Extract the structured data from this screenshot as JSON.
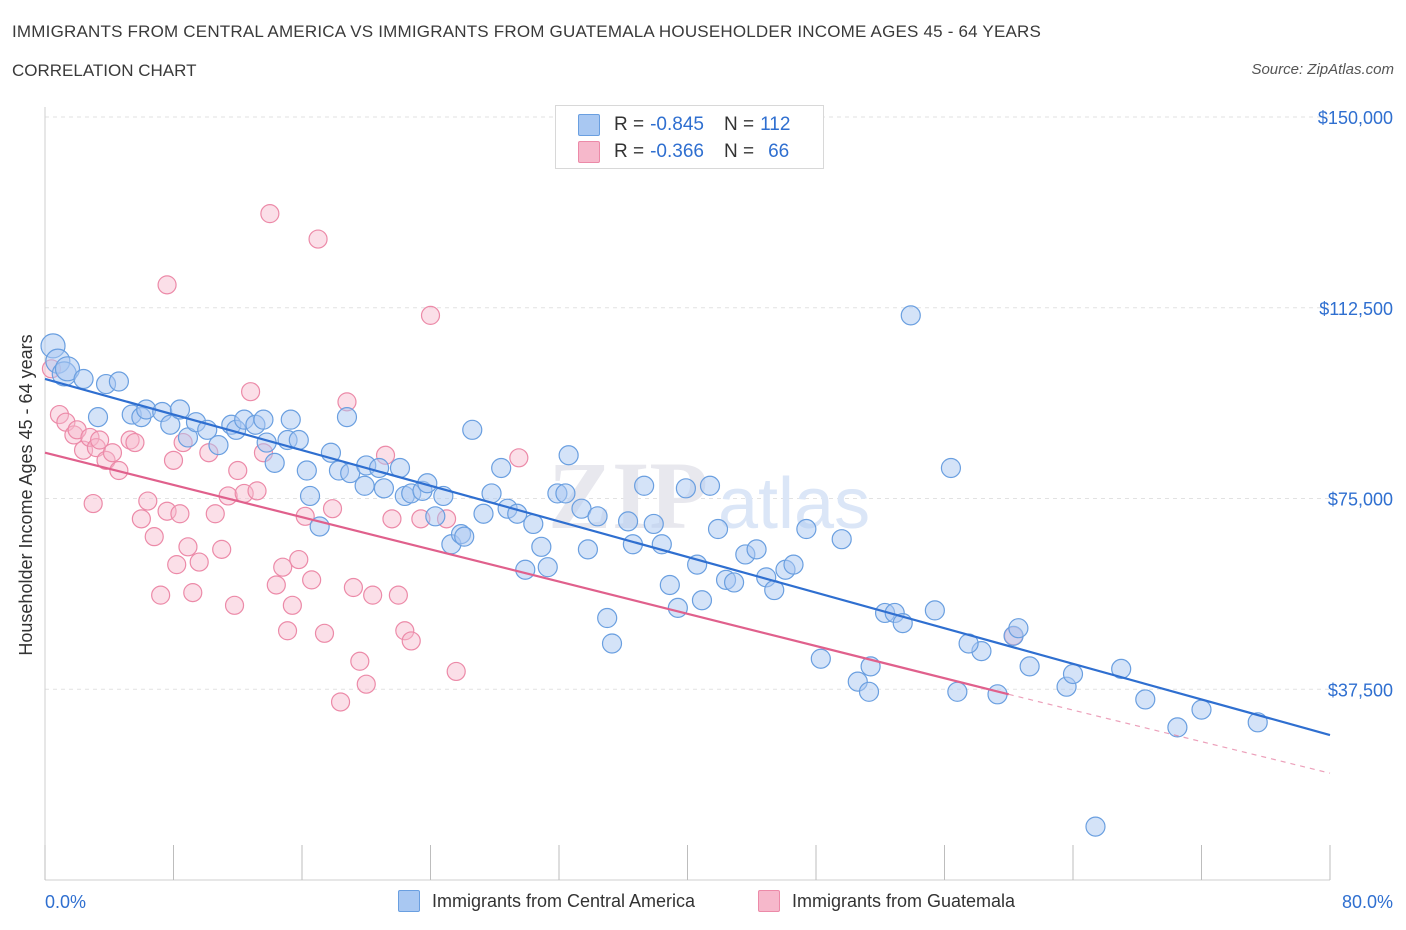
{
  "header": {
    "title": "IMMIGRANTS FROM CENTRAL AMERICA VS IMMIGRANTS FROM GUATEMALA HOUSEHOLDER INCOME AGES 45 - 64 YEARS",
    "subtitle": "CORRELATION CHART",
    "source": "Source: ZipAtlas.com"
  },
  "stats": {
    "r_label": "R =",
    "n_label": "N =",
    "central_america": {
      "r": "-0.845",
      "n": "112"
    },
    "guatemala": {
      "r": "-0.366",
      "n": "66"
    }
  },
  "watermark": {
    "zip": "ZIP",
    "atlas": "atlas"
  },
  "colors": {
    "blue_fill": "#a9c8f2",
    "blue_stroke": "#6a9fe0",
    "blue_line": "#2f6fd0",
    "pink_fill": "#f6b8cb",
    "pink_stroke": "#ec8aa8",
    "pink_line": "#e0608c",
    "axis_text": "#2f6fd0",
    "grid": "#e2e2e2"
  },
  "chart_data": {
    "type": "scatter",
    "title": "IMMIGRANTS FROM CENTRAL AMERICA VS IMMIGRANTS FROM GUATEMALA HOUSEHOLDER INCOME AGES 45 - 64 YEARS",
    "xlabel": "",
    "ylabel": "Householder Income Ages 45 - 64 years",
    "xlim": [
      0,
      80
    ],
    "ylim": [
      0,
      150000
    ],
    "x_tick_labels": [
      "0.0%",
      "80.0%"
    ],
    "y_ticks": [
      37500,
      75000,
      112500,
      150000
    ],
    "y_tick_labels": [
      "$37,500",
      "$75,000",
      "$112,500",
      "$150,000"
    ],
    "grid": true,
    "legend_position": "bottom",
    "series": [
      {
        "name": "Immigrants from Central America",
        "color": "blue",
        "trend": {
          "x": [
            0,
            80
          ],
          "y": [
            98500,
            28500
          ]
        },
        "points": [
          [
            0.5,
            105000
          ],
          [
            0.8,
            102000
          ],
          [
            1.2,
            99500
          ],
          [
            1.4,
            100500
          ],
          [
            2.4,
            98500
          ],
          [
            3.8,
            97500
          ],
          [
            4.6,
            98000
          ],
          [
            3.3,
            91000
          ],
          [
            5.4,
            91500
          ],
          [
            6.0,
            91000
          ],
          [
            6.3,
            92500
          ],
          [
            7.3,
            92000
          ],
          [
            7.8,
            89500
          ],
          [
            8.4,
            92500
          ],
          [
            8.9,
            87000
          ],
          [
            9.4,
            90000
          ],
          [
            10.1,
            88500
          ],
          [
            10.8,
            85500
          ],
          [
            11.6,
            89500
          ],
          [
            11.9,
            88500
          ],
          [
            12.4,
            90500
          ],
          [
            13.1,
            89500
          ],
          [
            13.6,
            90500
          ],
          [
            13.8,
            86000
          ],
          [
            14.3,
            82000
          ],
          [
            15.1,
            86500
          ],
          [
            15.3,
            90500
          ],
          [
            15.8,
            86500
          ],
          [
            16.3,
            80500
          ],
          [
            16.5,
            75500
          ],
          [
            17.1,
            69500
          ],
          [
            17.8,
            84000
          ],
          [
            18.3,
            80500
          ],
          [
            18.8,
            91000
          ],
          [
            19.0,
            80000
          ],
          [
            19.9,
            77500
          ],
          [
            20.0,
            81500
          ],
          [
            20.8,
            81000
          ],
          [
            21.1,
            77000
          ],
          [
            22.1,
            81000
          ],
          [
            22.4,
            75500
          ],
          [
            22.8,
            76000
          ],
          [
            23.5,
            76500
          ],
          [
            23.8,
            78000
          ],
          [
            24.3,
            71500
          ],
          [
            24.8,
            75500
          ],
          [
            25.3,
            66000
          ],
          [
            25.9,
            68000
          ],
          [
            26.1,
            67500
          ],
          [
            26.6,
            88500
          ],
          [
            27.3,
            72000
          ],
          [
            27.8,
            76000
          ],
          [
            28.4,
            81000
          ],
          [
            28.8,
            73000
          ],
          [
            29.4,
            72000
          ],
          [
            29.9,
            61000
          ],
          [
            30.4,
            70000
          ],
          [
            30.9,
            65500
          ],
          [
            31.3,
            61500
          ],
          [
            31.9,
            76000
          ],
          [
            32.4,
            76000
          ],
          [
            32.6,
            83500
          ],
          [
            33.4,
            73000
          ],
          [
            33.8,
            65000
          ],
          [
            34.4,
            71500
          ],
          [
            35.0,
            51500
          ],
          [
            35.3,
            46500
          ],
          [
            36.3,
            70500
          ],
          [
            36.6,
            66000
          ],
          [
            37.3,
            77500
          ],
          [
            37.9,
            70000
          ],
          [
            38.4,
            66000
          ],
          [
            38.9,
            58000
          ],
          [
            39.4,
            53500
          ],
          [
            39.9,
            77000
          ],
          [
            40.6,
            62000
          ],
          [
            40.9,
            55000
          ],
          [
            41.4,
            77500
          ],
          [
            41.9,
            69000
          ],
          [
            42.4,
            59000
          ],
          [
            42.9,
            58500
          ],
          [
            43.6,
            64000
          ],
          [
            44.3,
            65000
          ],
          [
            44.9,
            59500
          ],
          [
            45.4,
            57000
          ],
          [
            46.1,
            61000
          ],
          [
            46.6,
            62000
          ],
          [
            47.4,
            69000
          ],
          [
            48.3,
            43500
          ],
          [
            49.6,
            67000
          ],
          [
            50.6,
            39000
          ],
          [
            51.3,
            37000
          ],
          [
            51.4,
            42000
          ],
          [
            52.3,
            52500
          ],
          [
            52.9,
            52500
          ],
          [
            53.4,
            50500
          ],
          [
            53.9,
            111000
          ],
          [
            55.4,
            53000
          ],
          [
            56.4,
            81000
          ],
          [
            56.8,
            37000
          ],
          [
            58.3,
            45000
          ],
          [
            59.3,
            36500
          ],
          [
            60.3,
            48000
          ],
          [
            60.6,
            49500
          ],
          [
            61.3,
            42000
          ],
          [
            63.6,
            38000
          ],
          [
            65.4,
            10500
          ],
          [
            72.0,
            33500
          ],
          [
            70.5,
            30000
          ],
          [
            67.0,
            41500
          ],
          [
            64.0,
            40500
          ],
          [
            57.5,
            46500
          ],
          [
            68.5,
            35500
          ],
          [
            75.5,
            31000
          ]
        ]
      },
      {
        "name": "Immigrants from Guatemala",
        "color": "pink",
        "trend": {
          "x": [
            0,
            60
          ],
          "y": [
            84000,
            36500
          ]
        },
        "trend_dashed": {
          "x": [
            60,
            80
          ],
          "y": [
            36500,
            21000
          ]
        },
        "points": [
          [
            0.4,
            100500
          ],
          [
            0.9,
            91500
          ],
          [
            1.3,
            90000
          ],
          [
            1.8,
            87500
          ],
          [
            2.0,
            88500
          ],
          [
            2.4,
            84500
          ],
          [
            2.8,
            87000
          ],
          [
            3.2,
            85000
          ],
          [
            3.4,
            86500
          ],
          [
            3.8,
            82500
          ],
          [
            4.2,
            84000
          ],
          [
            4.6,
            80500
          ],
          [
            5.3,
            86500
          ],
          [
            5.6,
            86000
          ],
          [
            6.0,
            71000
          ],
          [
            6.4,
            74500
          ],
          [
            6.8,
            67500
          ],
          [
            7.2,
            56000
          ],
          [
            7.6,
            72500
          ],
          [
            8.0,
            82500
          ],
          [
            8.4,
            72000
          ],
          [
            8.6,
            86000
          ],
          [
            8.9,
            65500
          ],
          [
            9.2,
            56500
          ],
          [
            9.6,
            62500
          ],
          [
            10.2,
            84000
          ],
          [
            10.6,
            72000
          ],
          [
            11.0,
            65000
          ],
          [
            11.4,
            75500
          ],
          [
            11.8,
            54000
          ],
          [
            12.0,
            80500
          ],
          [
            12.4,
            76000
          ],
          [
            12.8,
            96000
          ],
          [
            13.2,
            76500
          ],
          [
            13.6,
            84000
          ],
          [
            14.0,
            131000
          ],
          [
            14.4,
            58000
          ],
          [
            14.8,
            61500
          ],
          [
            15.1,
            49000
          ],
          [
            15.4,
            54000
          ],
          [
            15.8,
            63000
          ],
          [
            16.2,
            71500
          ],
          [
            16.6,
            59000
          ],
          [
            17.0,
            126000
          ],
          [
            17.4,
            48500
          ],
          [
            17.9,
            73000
          ],
          [
            18.4,
            35000
          ],
          [
            18.8,
            94000
          ],
          [
            19.2,
            57500
          ],
          [
            19.6,
            43000
          ],
          [
            20.0,
            38500
          ],
          [
            20.4,
            56000
          ],
          [
            21.2,
            83500
          ],
          [
            21.6,
            71000
          ],
          [
            22.0,
            56000
          ],
          [
            22.4,
            49000
          ],
          [
            22.8,
            47000
          ],
          [
            23.4,
            71000
          ],
          [
            24.0,
            111000
          ],
          [
            25.6,
            41000
          ],
          [
            25.0,
            71000
          ],
          [
            7.6,
            117000
          ],
          [
            3.0,
            74000
          ],
          [
            8.2,
            62000
          ],
          [
            29.5,
            83000
          ],
          [
            60.3,
            48000
          ]
        ]
      }
    ]
  },
  "legend": {
    "central_america": "Immigrants from Central America",
    "guatemala": "Immigrants from Guatemala"
  }
}
